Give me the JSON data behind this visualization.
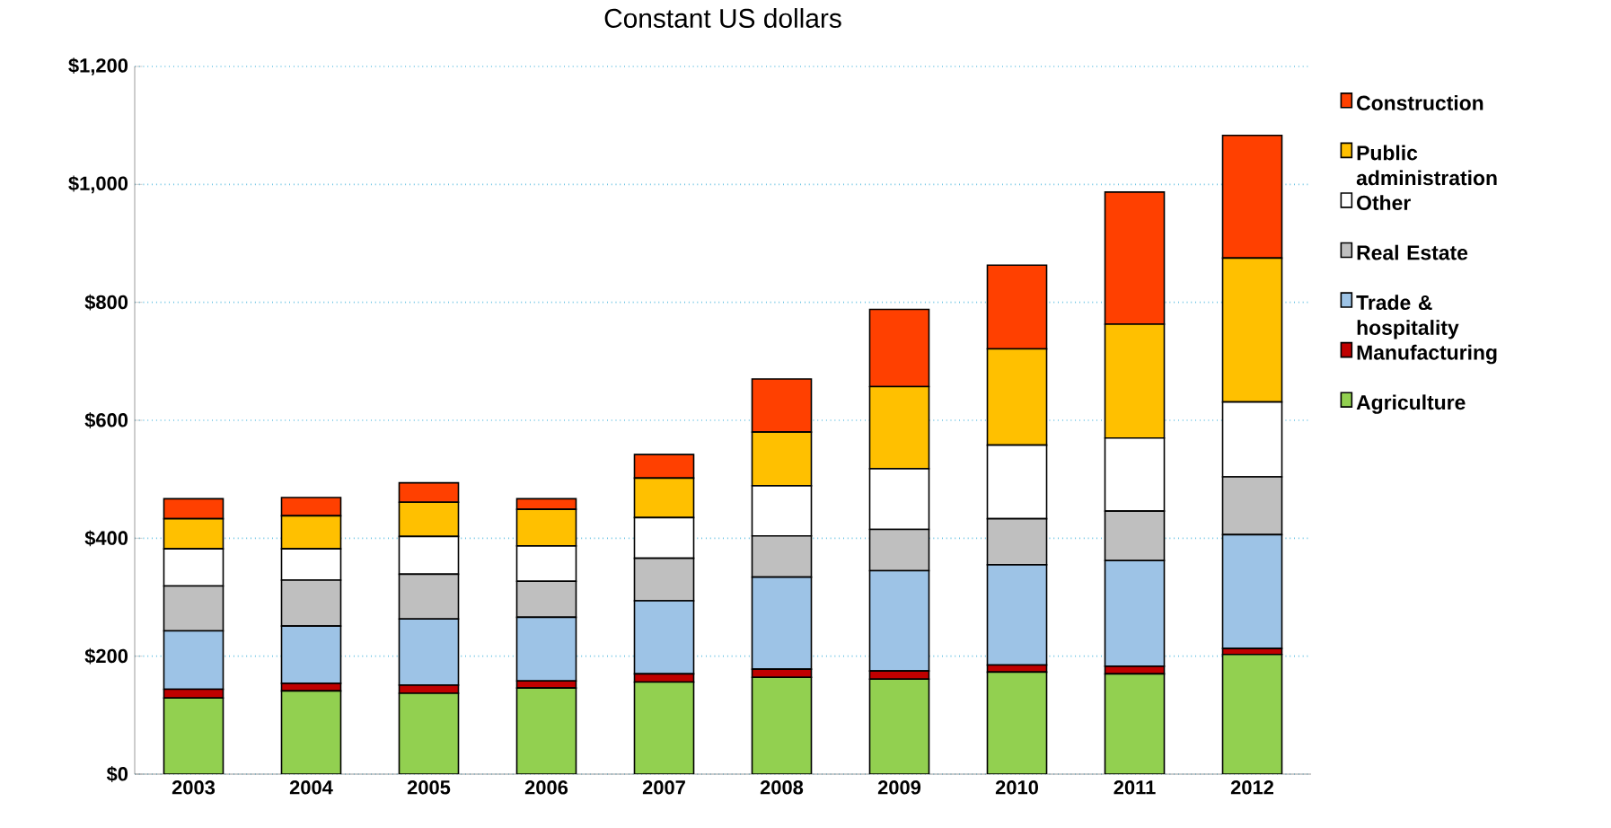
{
  "chart_data": {
    "type": "bar",
    "stacked": true,
    "title": "Constant US dollars",
    "categories": [
      "2003",
      "2004",
      "2005",
      "2006",
      "2007",
      "2008",
      "2009",
      "2010",
      "2011",
      "2012"
    ],
    "series": [
      {
        "name": "Agriculture",
        "color": "#92d050",
        "values": [
          129,
          141,
          137,
          146,
          156,
          164,
          161,
          173,
          170,
          203
        ]
      },
      {
        "name": "Manufacturing",
        "color": "#c00000",
        "values": [
          15,
          13,
          14,
          12,
          14,
          14,
          14,
          12,
          13,
          10
        ]
      },
      {
        "name": "Trade & hospitality",
        "color": "#9dc3e6",
        "values": [
          99,
          97,
          112,
          108,
          124,
          156,
          170,
          170,
          179,
          193
        ]
      },
      {
        "name": "Real Estate",
        "color": "#bfbfbf",
        "values": [
          76,
          78,
          76,
          61,
          72,
          70,
          70,
          78,
          84,
          98
        ]
      },
      {
        "name": "Other",
        "color": "#ffffff",
        "values": [
          63,
          53,
          64,
          60,
          69,
          85,
          103,
          125,
          124,
          127
        ]
      },
      {
        "name": "Public administration",
        "color": "#ffc000",
        "values": [
          51,
          56,
          58,
          62,
          67,
          91,
          139,
          163,
          193,
          244
        ]
      },
      {
        "name": "Construction",
        "color": "#ff4000",
        "values": [
          34,
          31,
          33,
          18,
          40,
          90,
          131,
          142,
          224,
          208
        ]
      }
    ],
    "ylim": [
      0,
      1200
    ],
    "yticks": [
      {
        "value": 0,
        "label": "$0"
      },
      {
        "value": 200,
        "label": "$200"
      },
      {
        "value": 400,
        "label": "$400"
      },
      {
        "value": 600,
        "label": "$600"
      },
      {
        "value": 800,
        "label": "$800"
      },
      {
        "value": 1000,
        "label": "$1,000"
      },
      {
        "value": 1200,
        "label": "$1,200"
      }
    ],
    "grid": "y",
    "legend": "right"
  }
}
